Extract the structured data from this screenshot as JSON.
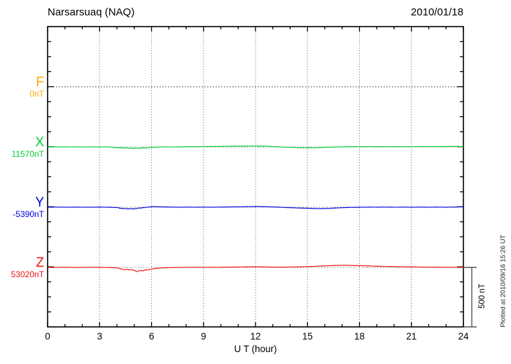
{
  "header": {
    "title": "Narsarsuaq (NAQ)",
    "date": "2010/01/18"
  },
  "x_axis": {
    "label": "U T (hour)",
    "ticks": [
      "0",
      "3",
      "6",
      "9",
      "12",
      "15",
      "18",
      "21",
      "24"
    ]
  },
  "channels": [
    {
      "name": "F",
      "baseline_label": "0nT",
      "color": "#ffaa00"
    },
    {
      "name": "X",
      "baseline_label": "11570nT",
      "color": "#00cc33"
    },
    {
      "name": "Y",
      "baseline_label": "-5390nT",
      "color": "#0000dd"
    },
    {
      "name": "Z",
      "baseline_label": "53020nT",
      "color": "#ee1111"
    }
  ],
  "scale_bar": {
    "label": "500 nT",
    "nT": 500
  },
  "footer_note": "Plotted at 2010/09/16 15:26 UT",
  "chart_data": {
    "type": "line",
    "title": "Narsarsuaq (NAQ)",
    "subtitle": "2010/01/18",
    "xlabel": "U T (hour)",
    "xlim": [
      0,
      24
    ],
    "x_major_tick_hours": 3,
    "x_minor_tick_hours": 1,
    "grid": "dotted vertical lines every 3 h; dotted horizontal line at each channel baseline",
    "legend_position": "left margin (channel letter + baseline value)",
    "scale_bar_nT": 500,
    "noise_nT": 2.5,
    "series": [
      {
        "name": "F",
        "baseline_nT": 0,
        "color": "#ffaa00",
        "style": "baseline-only",
        "points": [
          [
            0,
            0
          ],
          [
            24,
            0
          ]
        ]
      },
      {
        "name": "X",
        "baseline_nT": 11570,
        "color": "#00cc33",
        "style": "line",
        "points": [
          [
            0,
            0
          ],
          [
            0.3,
            2
          ],
          [
            0.6,
            0
          ],
          [
            1,
            1
          ],
          [
            1.4,
            0
          ],
          [
            1.8,
            1
          ],
          [
            2.2,
            0
          ],
          [
            2.6,
            1
          ],
          [
            3,
            0
          ],
          [
            3.4,
            1
          ],
          [
            3.7,
            -1
          ],
          [
            3.9,
            -4
          ],
          [
            4.1,
            -7
          ],
          [
            4.25,
            -4
          ],
          [
            4.4,
            -10
          ],
          [
            4.55,
            -6
          ],
          [
            4.7,
            -12
          ],
          [
            4.85,
            -8
          ],
          [
            5,
            -13
          ],
          [
            5.15,
            -9
          ],
          [
            5.3,
            -12
          ],
          [
            5.5,
            -7
          ],
          [
            5.7,
            -9
          ],
          [
            5.9,
            -4
          ],
          [
            6.1,
            -2
          ],
          [
            6.4,
            0
          ],
          [
            6.8,
            1
          ],
          [
            7.2,
            0
          ],
          [
            7.6,
            1
          ],
          [
            8,
            2
          ],
          [
            8.4,
            2
          ],
          [
            8.8,
            3
          ],
          [
            9.2,
            4
          ],
          [
            9.6,
            4
          ],
          [
            10,
            5
          ],
          [
            10.4,
            6
          ],
          [
            10.8,
            7
          ],
          [
            11.2,
            8
          ],
          [
            11.6,
            8
          ],
          [
            12,
            9
          ],
          [
            12.3,
            8
          ],
          [
            12.6,
            7
          ],
          [
            12.9,
            4
          ],
          [
            13.2,
            2
          ],
          [
            13.5,
            0
          ],
          [
            13.8,
            -2
          ],
          [
            14.2,
            -4
          ],
          [
            14.6,
            -6
          ],
          [
            15,
            -7
          ],
          [
            15.4,
            -6
          ],
          [
            15.8,
            -4
          ],
          [
            16.2,
            -2
          ],
          [
            16.6,
            0
          ],
          [
            17,
            1
          ],
          [
            17.4,
            2
          ],
          [
            17.8,
            3
          ],
          [
            18.2,
            2
          ],
          [
            18.6,
            3
          ],
          [
            19,
            2
          ],
          [
            19.4,
            3
          ],
          [
            19.8,
            2
          ],
          [
            20.2,
            3
          ],
          [
            20.6,
            2
          ],
          [
            21,
            3
          ],
          [
            21.4,
            3
          ],
          [
            21.8,
            4
          ],
          [
            22.2,
            3
          ],
          [
            22.6,
            4
          ],
          [
            23,
            4
          ],
          [
            23.4,
            5
          ],
          [
            23.8,
            4
          ],
          [
            24,
            3
          ]
        ]
      },
      {
        "name": "Y",
        "baseline_nT": -5390,
        "color": "#0000dd",
        "style": "line",
        "points": [
          [
            0,
            0
          ],
          [
            0.5,
            1
          ],
          [
            1,
            0
          ],
          [
            1.5,
            1
          ],
          [
            2,
            0
          ],
          [
            2.5,
            0
          ],
          [
            3,
            1
          ],
          [
            3.4,
            0
          ],
          [
            3.7,
            -1
          ],
          [
            4,
            -3
          ],
          [
            4.2,
            -8
          ],
          [
            4.35,
            -13
          ],
          [
            4.5,
            -10
          ],
          [
            4.65,
            -15
          ],
          [
            4.8,
            -12
          ],
          [
            5,
            -14
          ],
          [
            5.2,
            -9
          ],
          [
            5.4,
            -6
          ],
          [
            5.6,
            -3
          ],
          [
            5.8,
            1
          ],
          [
            6,
            4
          ],
          [
            6.2,
            5
          ],
          [
            6.5,
            3
          ],
          [
            6.8,
            2
          ],
          [
            7.2,
            1
          ],
          [
            7.6,
            0
          ],
          [
            8,
            1
          ],
          [
            8.5,
            0
          ],
          [
            9,
            1
          ],
          [
            9.5,
            0
          ],
          [
            10,
            1
          ],
          [
            10.5,
            2
          ],
          [
            11,
            3
          ],
          [
            11.4,
            4
          ],
          [
            11.8,
            5
          ],
          [
            12.2,
            6
          ],
          [
            12.6,
            4
          ],
          [
            13,
            2
          ],
          [
            13.4,
            0
          ],
          [
            13.8,
            -3
          ],
          [
            14.2,
            -5
          ],
          [
            14.6,
            -7
          ],
          [
            15,
            -9
          ],
          [
            15.4,
            -11
          ],
          [
            15.8,
            -12
          ],
          [
            16.2,
            -10
          ],
          [
            16.6,
            -7
          ],
          [
            17,
            -4
          ],
          [
            17.4,
            -2
          ],
          [
            17.8,
            -1
          ],
          [
            18.2,
            0
          ],
          [
            18.6,
            1
          ],
          [
            19,
            0
          ],
          [
            19.5,
            1
          ],
          [
            20,
            0
          ],
          [
            20.5,
            1
          ],
          [
            21,
            0
          ],
          [
            21.5,
            1
          ],
          [
            22,
            0
          ],
          [
            22.5,
            1
          ],
          [
            23,
            0
          ],
          [
            23.4,
            1
          ],
          [
            23.8,
            3
          ],
          [
            24,
            5
          ]
        ]
      },
      {
        "name": "Z",
        "baseline_nT": 53020,
        "color": "#ee1111",
        "style": "line",
        "points": [
          [
            0,
            0
          ],
          [
            0.5,
            0
          ],
          [
            1,
            1
          ],
          [
            1.5,
            0
          ],
          [
            2,
            0
          ],
          [
            2.5,
            1
          ],
          [
            3,
            0
          ],
          [
            3.5,
            -1
          ],
          [
            3.8,
            -2
          ],
          [
            4.05,
            -5
          ],
          [
            4.2,
            -10
          ],
          [
            4.3,
            -16
          ],
          [
            4.45,
            -20
          ],
          [
            4.55,
            -14
          ],
          [
            4.7,
            -22
          ],
          [
            4.85,
            -17
          ],
          [
            5,
            -26
          ],
          [
            5.1,
            -32
          ],
          [
            5.2,
            -35
          ],
          [
            5.35,
            -25
          ],
          [
            5.5,
            -30
          ],
          [
            5.65,
            -20
          ],
          [
            5.8,
            -22
          ],
          [
            6,
            -14
          ],
          [
            6.2,
            -9
          ],
          [
            6.5,
            -5
          ],
          [
            6.8,
            -3
          ],
          [
            7.2,
            -1
          ],
          [
            7.6,
            0
          ],
          [
            8,
            0
          ],
          [
            8.5,
            1
          ],
          [
            9,
            0
          ],
          [
            9.5,
            1
          ],
          [
            10,
            1
          ],
          [
            10.5,
            2
          ],
          [
            11,
            3
          ],
          [
            11.5,
            4
          ],
          [
            12,
            5
          ],
          [
            12.5,
            4
          ],
          [
            13,
            2
          ],
          [
            13.5,
            2
          ],
          [
            14,
            3
          ],
          [
            14.5,
            5
          ],
          [
            15,
            7
          ],
          [
            15.5,
            10
          ],
          [
            16,
            13
          ],
          [
            16.5,
            16
          ],
          [
            17,
            18
          ],
          [
            17.5,
            17
          ],
          [
            18,
            15
          ],
          [
            18.5,
            13
          ],
          [
            19,
            10
          ],
          [
            19.5,
            8
          ],
          [
            20,
            7
          ],
          [
            20.5,
            5
          ],
          [
            21,
            4
          ],
          [
            21.5,
            3
          ],
          [
            22,
            2
          ],
          [
            22.5,
            2
          ],
          [
            23,
            1
          ],
          [
            23.5,
            1
          ],
          [
            24,
            0
          ]
        ]
      }
    ]
  }
}
